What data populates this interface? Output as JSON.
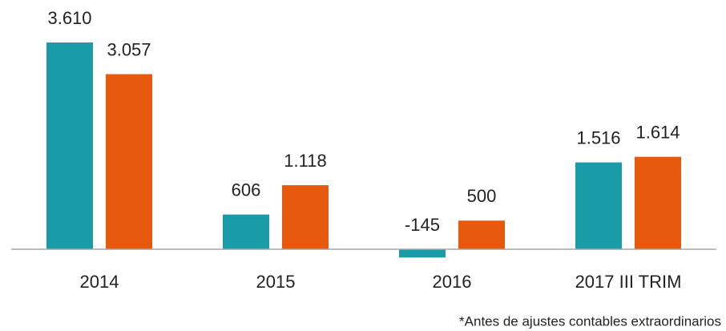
{
  "chart_data": {
    "type": "bar",
    "categories": [
      "2014",
      "2015",
      "2016",
      "2017 III TRIM"
    ],
    "series": [
      {
        "color": "#1a9ba8",
        "values": [
          3610,
          606,
          -145,
          1516
        ],
        "value_labels": [
          "3.610",
          "606",
          "-145",
          "1.516"
        ]
      },
      {
        "color": "#e75a0d",
        "values": [
          3057,
          1118,
          500,
          1614
        ],
        "value_labels": [
          "3.057",
          "1.118",
          "500",
          "1.614"
        ]
      }
    ],
    "ylim": [
      -300,
      4300
    ],
    "footnote": "*Antes de ajustes contables extraordinarios"
  }
}
